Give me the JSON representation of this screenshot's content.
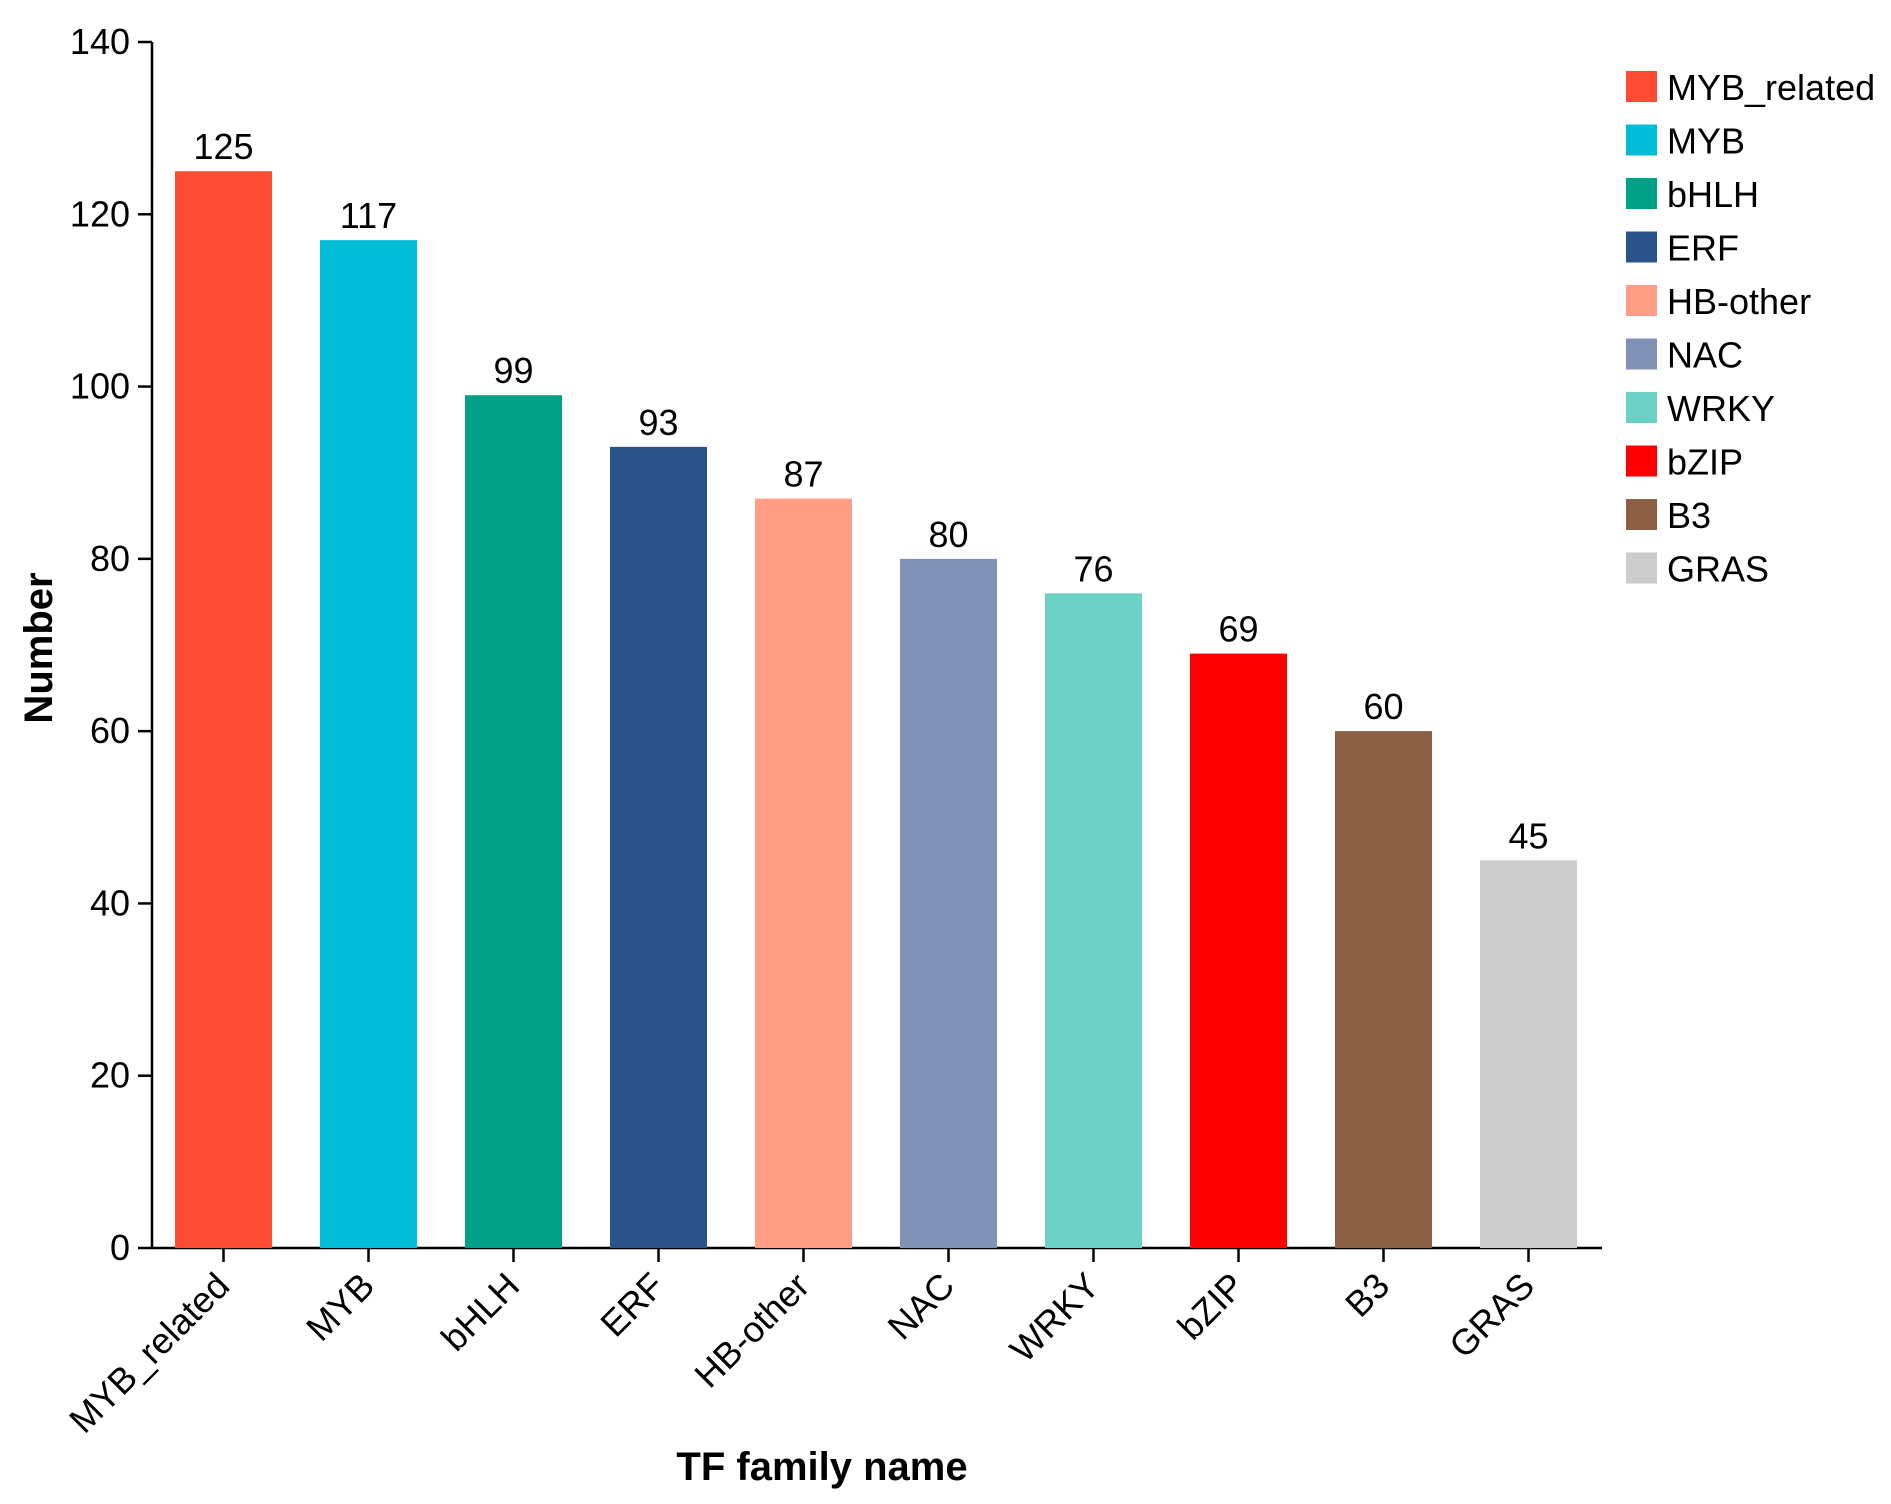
{
  "chart_data": {
    "type": "bar",
    "title": "",
    "xlabel": "TF family name",
    "ylabel": "Number",
    "ylim": [
      0,
      140
    ],
    "yticks": [
      0,
      20,
      40,
      60,
      80,
      100,
      120,
      140
    ],
    "categories": [
      "MYB_related",
      "MYB",
      "bHLH",
      "ERF",
      "HB-other",
      "NAC",
      "WRKY",
      "bZIP",
      "B3",
      "GRAS"
    ],
    "values": [
      125,
      117,
      99,
      93,
      87,
      80,
      76,
      69,
      60,
      45
    ],
    "colors": [
      "#FF4B33",
      "#00BCD6",
      "#00A287",
      "#2B538A",
      "#FF9E84",
      "#8292B6",
      "#6AD1C4",
      "#FF0000",
      "#8A5F43",
      "#CCCCCC"
    ],
    "grid": false,
    "legend_position": "top-right",
    "data_labels": true
  }
}
